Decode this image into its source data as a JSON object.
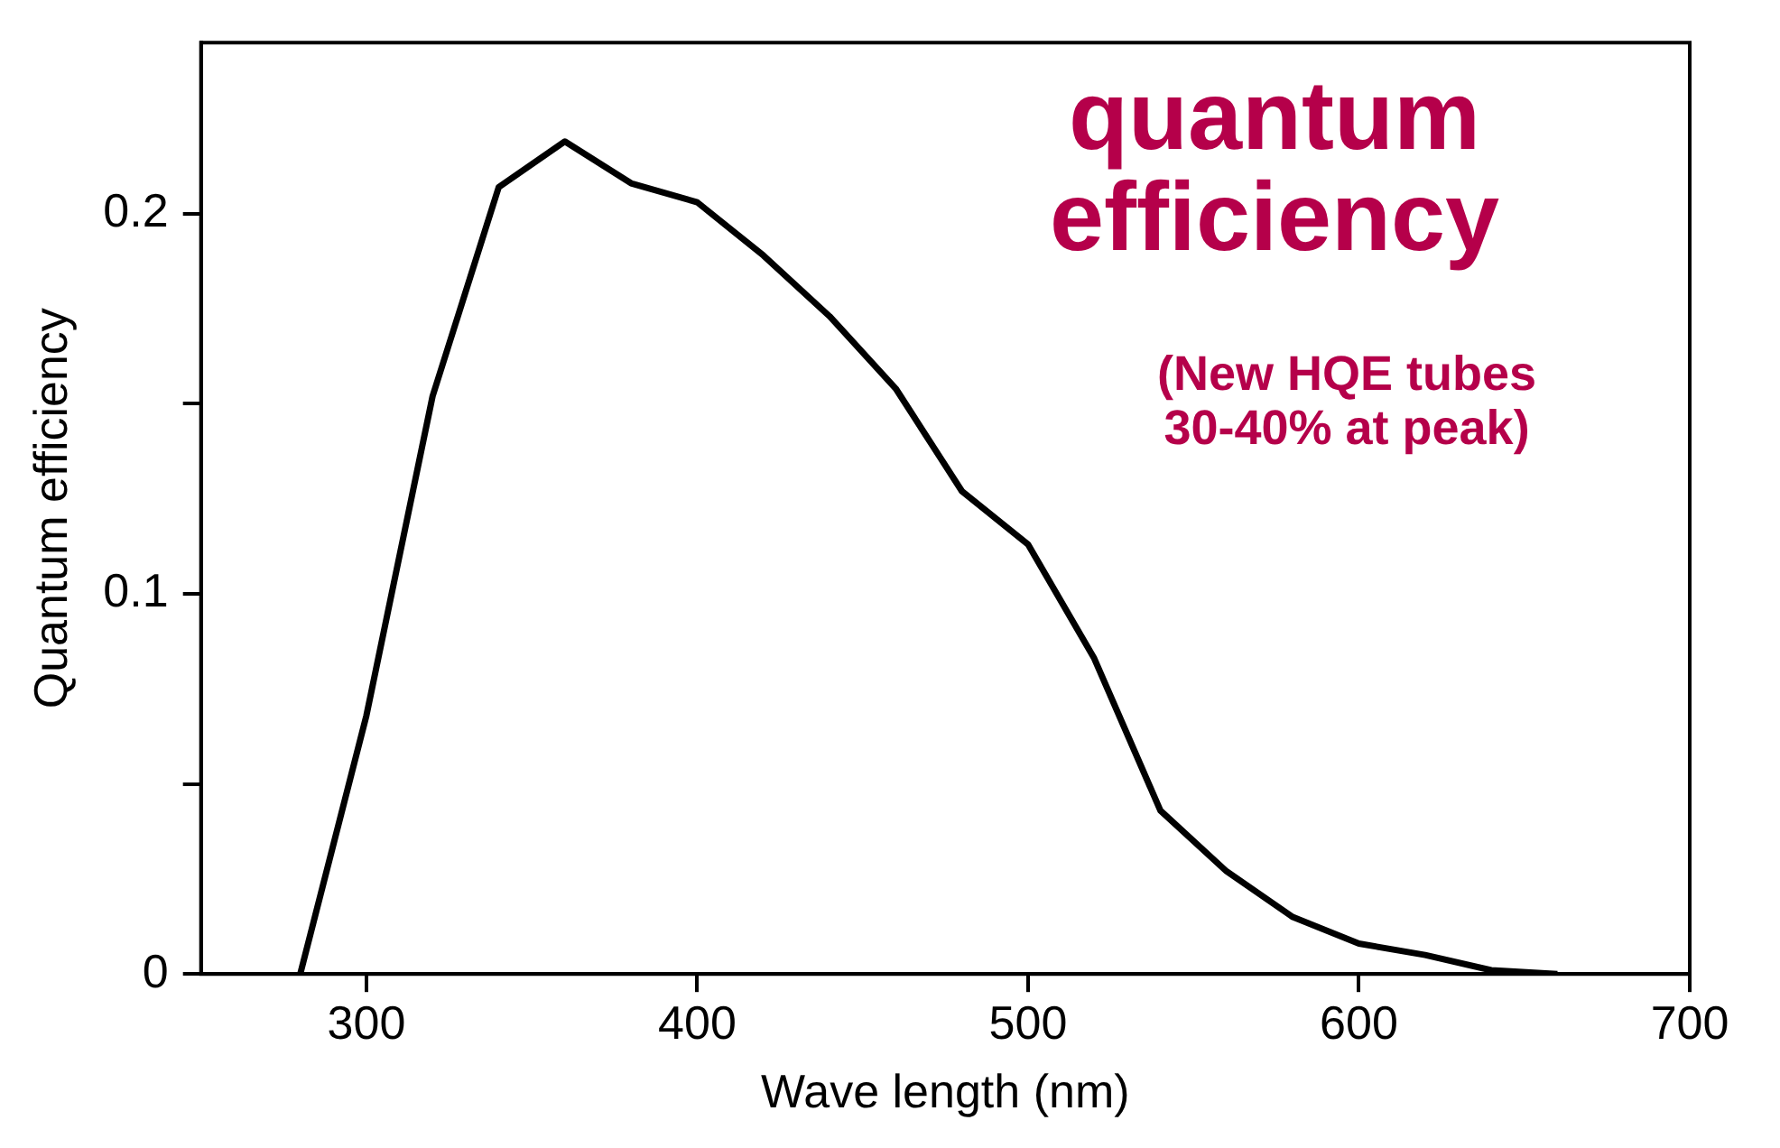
{
  "chart_data": {
    "type": "line",
    "xlabel": "Wave length (nm)",
    "ylabel": "Quantum efficiency",
    "x": [
      280,
      300,
      320,
      340,
      360,
      380,
      400,
      420,
      440,
      460,
      480,
      500,
      520,
      540,
      560,
      580,
      600,
      620,
      640,
      660
    ],
    "series": [
      {
        "color": "#000000",
        "values": [
          0,
          0.068,
          0.152,
          0.207,
          0.219,
          0.208,
          0.203,
          0.189,
          0.173,
          0.154,
          0.127,
          0.113,
          0.083,
          0.043,
          0.027,
          0.015,
          0.008,
          0.005,
          0.001,
          0
        ]
      }
    ],
    "xlim": [
      250,
      700
    ],
    "xticks": [
      300,
      400,
      500,
      600,
      700
    ],
    "ylim": [
      0,
      0.245
    ],
    "yticks": [
      0,
      {
        "value": 0.05,
        "label": null
      },
      0.1,
      {
        "value": 0.15,
        "label": null
      },
      0.2
    ],
    "grid": false,
    "legend": false,
    "marker": "none",
    "line_style": "solid",
    "annotations": [
      "quantum\nefficiency",
      "(New HQE tubes\n30-40% at peak)"
    ]
  }
}
